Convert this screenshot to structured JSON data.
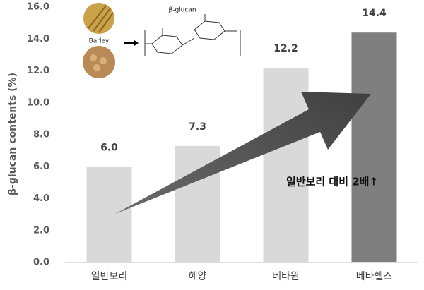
{
  "chart_data": {
    "type": "bar",
    "y_label": "β-glucan contents (%)",
    "categories": [
      "일반보리",
      "혜양",
      "베타원",
      "베타헬스"
    ],
    "values": [
      6.0,
      7.3,
      12.2,
      14.4
    ],
    "value_labels": [
      "6.0",
      "7.3",
      "12.2",
      "14.4"
    ],
    "colors": [
      "#d9d9d9",
      "#d9d9d9",
      "#d9d9d9",
      "#7f7f7f"
    ],
    "ylim": [
      0,
      16
    ],
    "yticks": [
      {
        "value": 0,
        "label": "0.0"
      },
      {
        "value": 2,
        "label": "2.0"
      },
      {
        "value": 4,
        "label": "4.0"
      },
      {
        "value": 6,
        "label": "6.0"
      },
      {
        "value": 8,
        "label": "8.0"
      },
      {
        "value": 10,
        "label": "10.0"
      },
      {
        "value": 12,
        "label": "12.0"
      },
      {
        "value": 14,
        "label": "14.0"
      },
      {
        "value": 16,
        "label": "16.0"
      }
    ],
    "annotations": {
      "arrow_text": "일반보리 대비 2배↑",
      "barley": "Barley",
      "glucan": "β-glucan"
    }
  }
}
